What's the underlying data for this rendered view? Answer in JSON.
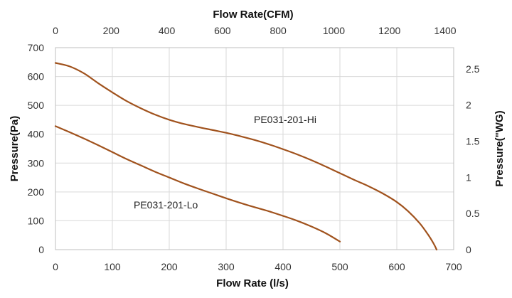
{
  "chart_data": {
    "type": "line",
    "title": "",
    "xlabel": "Flow Rate (l/s)",
    "ylabel": "Pressure(Pa)",
    "x_top_label": "Flow Rate(CFM)",
    "y_right_label": "Pressure(\"WG)",
    "xlim": [
      0,
      700
    ],
    "ylim": [
      0,
      700
    ],
    "x_ticks": [
      "0",
      "100",
      "200",
      "300",
      "400",
      "500",
      "600",
      "700"
    ],
    "y_ticks": [
      "0",
      "100",
      "200",
      "300",
      "400",
      "500",
      "600",
      "700"
    ],
    "x_top_ticks": [
      "0",
      "200",
      "400",
      "600",
      "800",
      "1000",
      "1200",
      "1400"
    ],
    "y_right_ticks": [
      "0",
      "0.5",
      "1",
      "1.5",
      "2",
      "2.5"
    ],
    "grid": true,
    "line_color": "#a0521d",
    "series": [
      {
        "name": "PE031-201-Hi",
        "x": [
          0,
          25,
          50,
          75,
          100,
          125,
          150,
          175,
          200,
          225,
          250,
          275,
          300,
          325,
          350,
          375,
          400,
          425,
          450,
          475,
          500,
          525,
          550,
          575,
          600,
          620,
          640,
          655,
          665,
          670
        ],
        "y": [
          647,
          635,
          611,
          577,
          545,
          515,
          490,
          468,
          450,
          436,
          425,
          415,
          405,
          393,
          380,
          365,
          348,
          330,
          310,
          288,
          265,
          242,
          220,
          195,
          165,
          133,
          92,
          52,
          20,
          0
        ]
      },
      {
        "name": "PE031-201-Lo",
        "x": [
          0,
          25,
          50,
          75,
          100,
          125,
          150,
          175,
          200,
          225,
          250,
          275,
          300,
          325,
          350,
          375,
          400,
          425,
          450,
          475,
          500
        ],
        "y": [
          428,
          407,
          385,
          362,
          338,
          314,
          292,
          270,
          250,
          230,
          212,
          195,
          178,
          162,
          147,
          133,
          117,
          100,
          80,
          57,
          28
        ]
      }
    ]
  }
}
